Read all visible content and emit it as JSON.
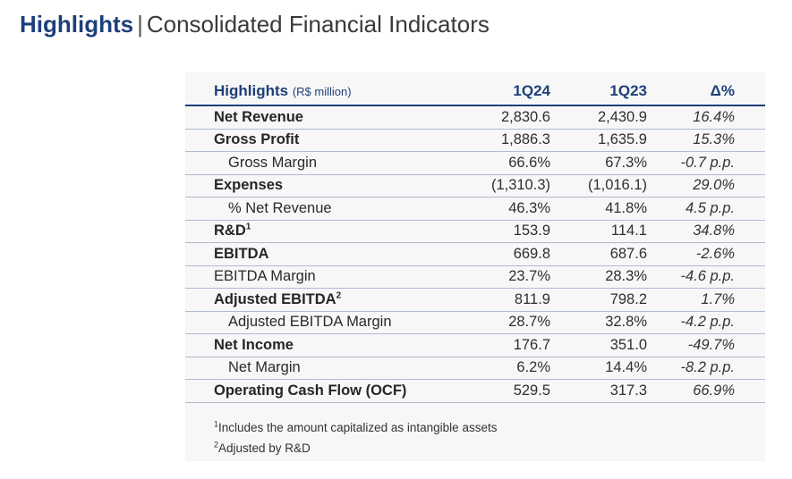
{
  "header": {
    "title_highlight": "Highlights",
    "separator": "|",
    "title_rest": "Consolidated Financial Indicators"
  },
  "table": {
    "header": {
      "label": "Highlights",
      "unit": "(R$ million)",
      "col1": "1Q24",
      "col2": "1Q23",
      "col3": "Δ%"
    },
    "rows": [
      {
        "label": "Net Revenue",
        "sup": "",
        "q24": "2,830.6",
        "q23": "2,430.9",
        "delta": "16.4%"
      },
      {
        "label": "Gross Profit",
        "sup": "",
        "q24": "1,886.3",
        "q23": "1,635.9",
        "delta": "15.3%"
      },
      {
        "label": "Gross Margin",
        "sup": "",
        "q24": "66.6%",
        "q23": "67.3%",
        "delta": "-0.7 p.p."
      },
      {
        "label": "Expenses",
        "sup": "",
        "q24": "(1,310.3)",
        "q23": "(1,016.1)",
        "delta": "29.0%"
      },
      {
        "label": "% Net Revenue",
        "sup": "",
        "q24": "46.3%",
        "q23": "41.8%",
        "delta": "4.5 p.p."
      },
      {
        "label": "R&D",
        "sup": "1",
        "q24": "153.9",
        "q23": "114.1",
        "delta": "34.8%"
      },
      {
        "label": "EBITDA",
        "sup": "",
        "q24": "669.8",
        "q23": "687.6",
        "delta": "-2.6%"
      },
      {
        "label": "EBITDA Margin",
        "sup": "",
        "q24": "23.7%",
        "q23": "28.3%",
        "delta": "-4.6 p.p."
      },
      {
        "label": "Adjusted EBITDA",
        "sup": "2",
        "q24": "811.9",
        "q23": "798.2",
        "delta": "1.7%"
      },
      {
        "label": "Adjusted EBITDA Margin",
        "sup": "",
        "q24": "28.7%",
        "q23": "32.8%",
        "delta": "-4.2 p.p."
      },
      {
        "label": "Net Income",
        "sup": "",
        "q24": "176.7",
        "q23": "351.0",
        "delta": "-49.7%"
      },
      {
        "label": "Net Margin",
        "sup": "",
        "q24": "6.2%",
        "q23": "14.4%",
        "delta": "-8.2 p.p."
      },
      {
        "label": "Operating Cash Flow (OCF)",
        "sup": "",
        "q24": "529.5",
        "q23": "317.3",
        "delta": "66.9%"
      }
    ]
  },
  "footnotes": [
    {
      "mark": "1",
      "text": "Includes the amount capitalized as intangible assets"
    },
    {
      "mark": "2",
      "text": "Adjusted by R&D"
    }
  ]
}
